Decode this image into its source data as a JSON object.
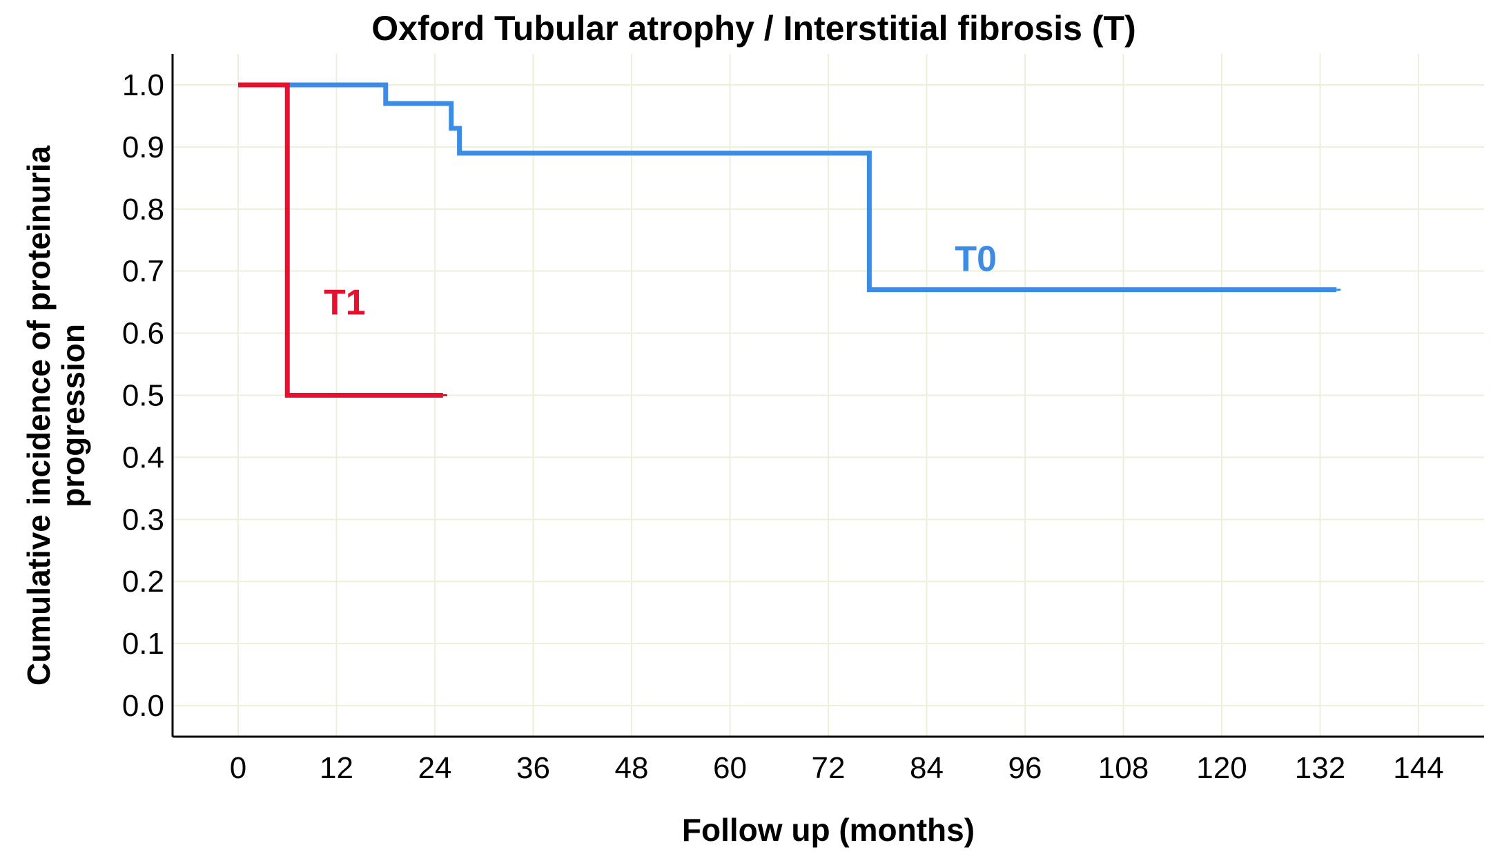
{
  "chart_data": {
    "type": "line",
    "subtype": "step",
    "title": "Oxford Tubular atrophy / Interstitial fibrosis (T)",
    "xlabel": "Follow up (months)",
    "ylabel_lines": [
      "Cumulative incidence of proteinuria",
      "progression"
    ],
    "xlim": [
      -8,
      152
    ],
    "ylim": [
      -0.05,
      1.05
    ],
    "xticks": [
      0,
      12,
      24,
      36,
      48,
      60,
      72,
      84,
      96,
      108,
      120,
      132,
      144
    ],
    "yticks": [
      0.0,
      0.1,
      0.2,
      0.3,
      0.4,
      0.5,
      0.6,
      0.7,
      0.8,
      0.9,
      1.0
    ],
    "ytick_labels": [
      "0.0",
      "0.1",
      "0.2",
      "0.3",
      "0.4",
      "0.5",
      "0.6",
      "0.7",
      "0.8",
      "0.9",
      "1.0"
    ],
    "grid": true,
    "series": [
      {
        "name": "T0",
        "color": "#3c8ce6",
        "steps": [
          {
            "x": 0,
            "y": 1.0
          },
          {
            "x": 18,
            "y": 0.97
          },
          {
            "x": 26,
            "y": 0.93
          },
          {
            "x": 27,
            "y": 0.89
          },
          {
            "x": 77,
            "y": 0.67
          }
        ],
        "end_x": 134
      },
      {
        "name": "T1",
        "color": "#e8102e",
        "steps": [
          {
            "x": 0,
            "y": 1.0
          },
          {
            "x": 6,
            "y": 0.5
          }
        ],
        "end_x": 25
      }
    ]
  }
}
